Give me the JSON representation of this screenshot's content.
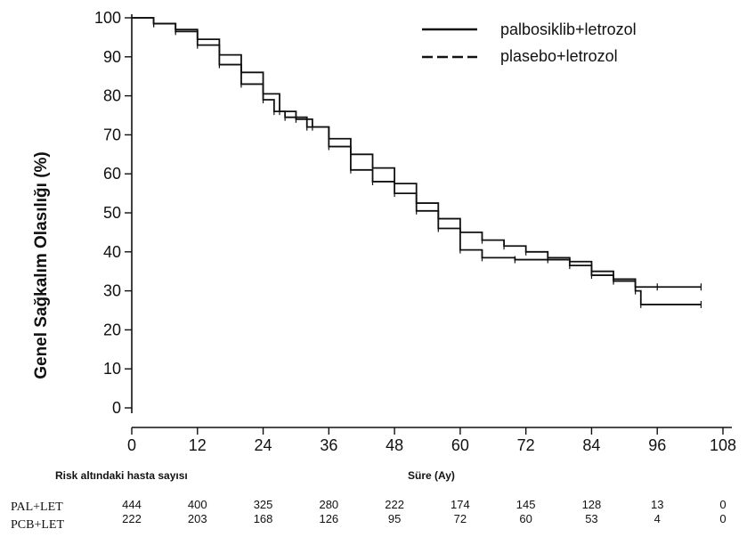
{
  "chart_data": {
    "type": "line",
    "ylabel": "Genel Sağkalım Olasılığı (%)",
    "xlabel": "Süre (Ay)",
    "x_ticks": [
      0,
      12,
      24,
      36,
      48,
      60,
      72,
      84,
      96,
      108
    ],
    "y_ticks": [
      0,
      10,
      20,
      30,
      40,
      50,
      60,
      70,
      80,
      90,
      100
    ],
    "xlim": [
      0,
      108
    ],
    "ylim": [
      0,
      100
    ],
    "grid": false,
    "legend_position": "top-right",
    "series": [
      {
        "name": "palbosiklib+letrozol",
        "style": "solid",
        "points": [
          [
            0,
            100
          ],
          [
            4,
            98.5
          ],
          [
            8,
            96.5
          ],
          [
            12,
            93
          ],
          [
            16,
            88
          ],
          [
            20,
            83
          ],
          [
            24,
            79
          ],
          [
            26,
            76
          ],
          [
            28,
            74.5
          ],
          [
            32,
            72
          ],
          [
            36,
            69
          ],
          [
            40,
            65
          ],
          [
            44,
            61.5
          ],
          [
            48,
            57.5
          ],
          [
            52,
            52.5
          ],
          [
            56,
            48.5
          ],
          [
            60,
            45
          ],
          [
            64,
            43
          ],
          [
            68,
            41.5
          ],
          [
            72,
            40
          ],
          [
            76,
            38.5
          ],
          [
            80,
            36.5
          ],
          [
            84,
            34
          ],
          [
            88,
            32.5
          ],
          [
            92,
            31
          ],
          [
            96,
            31
          ],
          [
            104,
            31
          ]
        ]
      },
      {
        "name": "plasebo+letrozol",
        "style": "dashed",
        "points": [
          [
            0,
            100
          ],
          [
            4,
            98.5
          ],
          [
            8,
            97
          ],
          [
            12,
            94.5
          ],
          [
            16,
            90.5
          ],
          [
            20,
            86
          ],
          [
            24,
            80.5
          ],
          [
            27,
            76
          ],
          [
            30,
            74
          ],
          [
            33,
            72
          ],
          [
            36,
            67
          ],
          [
            40,
            61
          ],
          [
            44,
            58
          ],
          [
            48,
            55
          ],
          [
            52,
            50.5
          ],
          [
            56,
            46
          ],
          [
            60,
            40.5
          ],
          [
            64,
            38.5
          ],
          [
            70,
            38
          ],
          [
            76,
            38
          ],
          [
            80,
            37.5
          ],
          [
            84,
            35
          ],
          [
            88,
            33
          ],
          [
            92,
            30
          ],
          [
            93,
            26.5
          ],
          [
            104,
            26.5
          ]
        ]
      }
    ],
    "risk_table": {
      "title": "Risk altındaki hasta sayısı",
      "times": [
        0,
        12,
        24,
        36,
        48,
        60,
        72,
        84,
        96,
        108
      ],
      "rows": [
        {
          "label": "PAL+LET",
          "values": [
            "444",
            "400",
            "325",
            "280",
            "222",
            "174",
            "145",
            "128",
            "13",
            "0"
          ]
        },
        {
          "label": "PCB+LET",
          "values": [
            "222",
            "203",
            "168",
            "126",
            "95",
            "72",
            "60",
            "53",
            "4",
            "0"
          ]
        }
      ]
    }
  }
}
